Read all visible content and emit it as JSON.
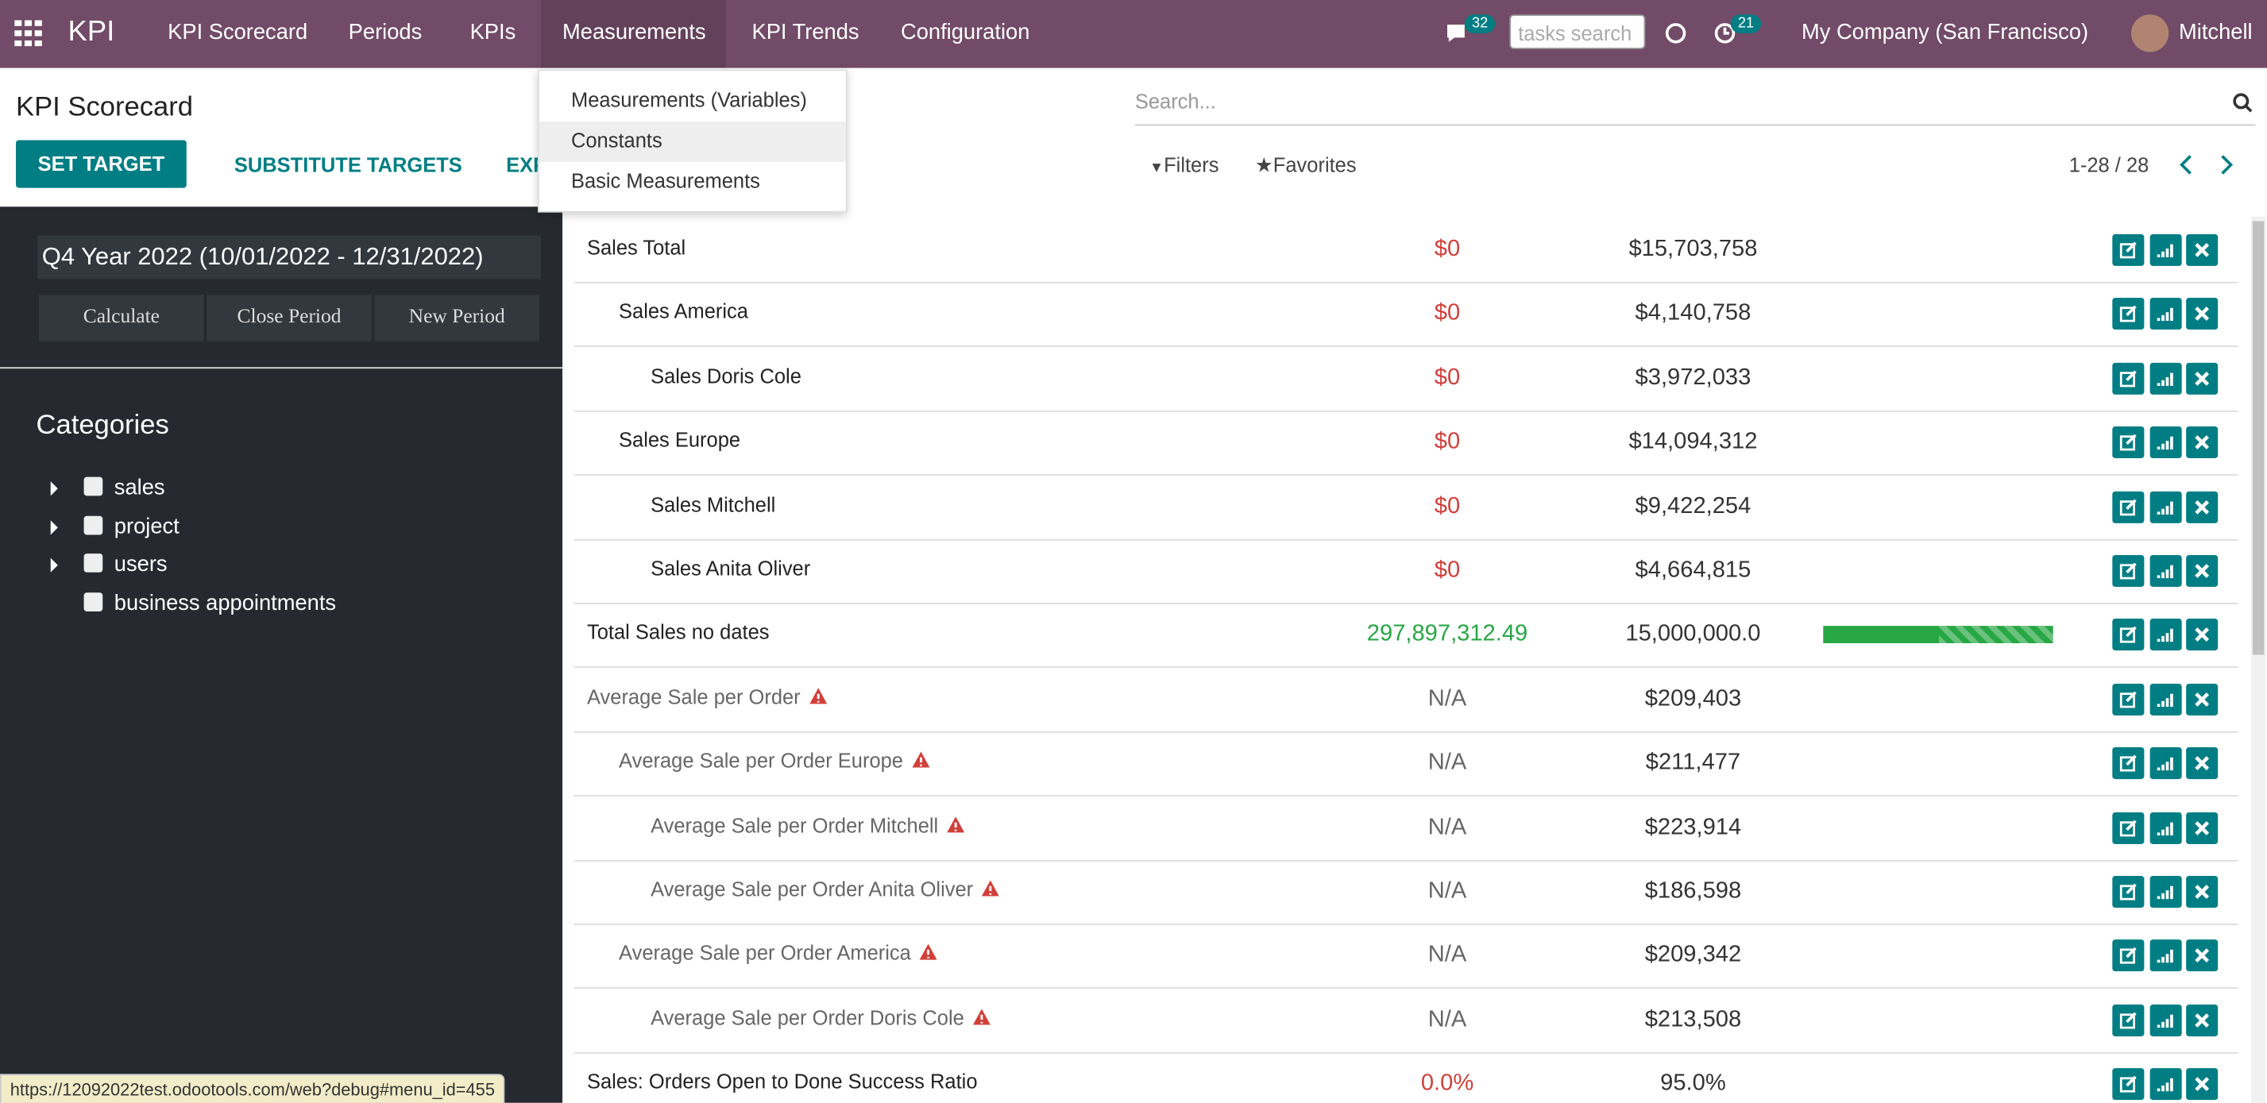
{
  "navbar": {
    "app": "KPI",
    "menu": [
      "KPI Scorecard",
      "Periods",
      "KPIs",
      "Measurements",
      "KPI Trends",
      "Configuration"
    ],
    "messages_badge": "32",
    "activities_badge": "21",
    "tasks_search_placeholder": "tasks search",
    "company": "My Company (San Francisco)",
    "user": "Mitchell"
  },
  "dropdown": {
    "items": [
      "Measurements (Variables)",
      "Constants",
      "Basic Measurements"
    ]
  },
  "control_panel": {
    "title": "KPI Scorecard",
    "buttons": [
      "SET TARGET",
      "SUBSTITUTE TARGETS",
      "EXPORT"
    ],
    "search_placeholder": "Search...",
    "filters": "Filters",
    "favorites": "Favorites",
    "pager": "1-28 / 28"
  },
  "sidebar": {
    "period": "Q4 Year 2022 (10/01/2022 - 12/31/2022)",
    "actions": [
      "Calculate",
      "Close Period",
      "New Period"
    ],
    "categories_title": "Categories",
    "categories": [
      {
        "label": "sales",
        "expandable": true
      },
      {
        "label": "project",
        "expandable": true
      },
      {
        "label": "users",
        "expandable": true
      },
      {
        "label": "business appointments",
        "expandable": false
      }
    ]
  },
  "table": {
    "rows": [
      {
        "name": "Sales Total",
        "level": 0,
        "actual": "$0",
        "target": "$15,703,758",
        "status": "danger"
      },
      {
        "name": "Sales America",
        "level": 1,
        "actual": "$0",
        "target": "$4,140,758",
        "status": "danger"
      },
      {
        "name": "Sales Doris Cole",
        "level": 2,
        "actual": "$0",
        "target": "$3,972,033",
        "status": "danger"
      },
      {
        "name": "Sales Europe",
        "level": 1,
        "actual": "$0",
        "target": "$14,094,312",
        "status": "danger"
      },
      {
        "name": "Sales Mitchell",
        "level": 2,
        "actual": "$0",
        "target": "$9,422,254",
        "status": "danger"
      },
      {
        "name": "Sales Anita Oliver",
        "level": 2,
        "actual": "$0",
        "target": "$4,664,815",
        "status": "danger"
      },
      {
        "name": "Total Sales no dates",
        "level": 0,
        "actual": "297,897,312.49",
        "target": "15,000,000.0",
        "status": "success",
        "progress": true
      },
      {
        "name": "Average Sale per Order",
        "level": 0,
        "actual": "N/A",
        "target": "$209,403",
        "status": "muted",
        "warning": true
      },
      {
        "name": "Average Sale per Order Europe",
        "level": 1,
        "actual": "N/A",
        "target": "$211,477",
        "status": "muted",
        "warning": true
      },
      {
        "name": "Average Sale per Order Mitchell",
        "level": 2,
        "actual": "N/A",
        "target": "$223,914",
        "status": "muted",
        "warning": true
      },
      {
        "name": "Average Sale per Order Anita Oliver",
        "level": 2,
        "actual": "N/A",
        "target": "$186,598",
        "status": "muted",
        "warning": true
      },
      {
        "name": "Average Sale per Order America",
        "level": 1,
        "actual": "N/A",
        "target": "$209,342",
        "status": "muted",
        "warning": true
      },
      {
        "name": "Average Sale per Order Doris Cole",
        "level": 2,
        "actual": "N/A",
        "target": "$213,508",
        "status": "muted",
        "warning": true
      },
      {
        "name": "Sales: Orders Open to Done Success Ratio",
        "level": 0,
        "actual": "0.0%",
        "target": "95.0%",
        "status": "danger"
      }
    ]
  },
  "status_url": "https://12092022test.odootools.com/web?debug#menu_id=455"
}
